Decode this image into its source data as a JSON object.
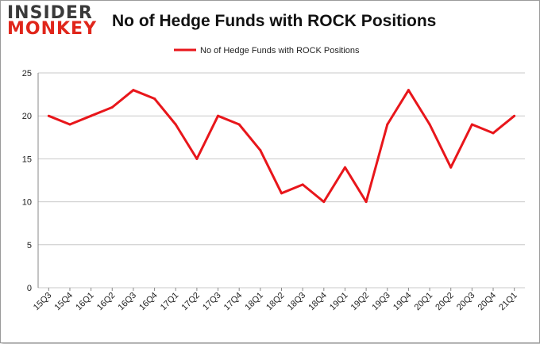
{
  "logo": {
    "line1": "INSIDER",
    "line2": "MONKEY"
  },
  "colors": {
    "series": "#e8161b",
    "grid": "#c8c8c8",
    "axis": "#888888"
  },
  "chart_data": {
    "type": "line",
    "title": "No of Hedge Funds with ROCK Positions",
    "categories": [
      "15Q3",
      "15Q4",
      "16Q1",
      "16Q2",
      "16Q3",
      "16Q4",
      "17Q1",
      "17Q2",
      "17Q3",
      "17Q4",
      "18Q1",
      "18Q2",
      "18Q3",
      "18Q4",
      "19Q1",
      "19Q2",
      "19Q3",
      "19Q4",
      "20Q1",
      "20Q2",
      "20Q3",
      "20Q4",
      "21Q1"
    ],
    "series": [
      {
        "name": "No of Hedge Funds with ROCK Positions",
        "values": [
          20,
          19,
          20,
          21,
          23,
          22,
          19,
          15,
          20,
          19,
          16,
          11,
          12,
          10,
          14,
          10,
          19,
          23,
          19,
          14,
          19,
          18,
          20
        ]
      }
    ],
    "yticks": [
      "0",
      "5",
      "10",
      "15",
      "20",
      "25"
    ],
    "ylim": [
      0,
      25
    ],
    "grid": true,
    "legend_position": "top-center"
  }
}
